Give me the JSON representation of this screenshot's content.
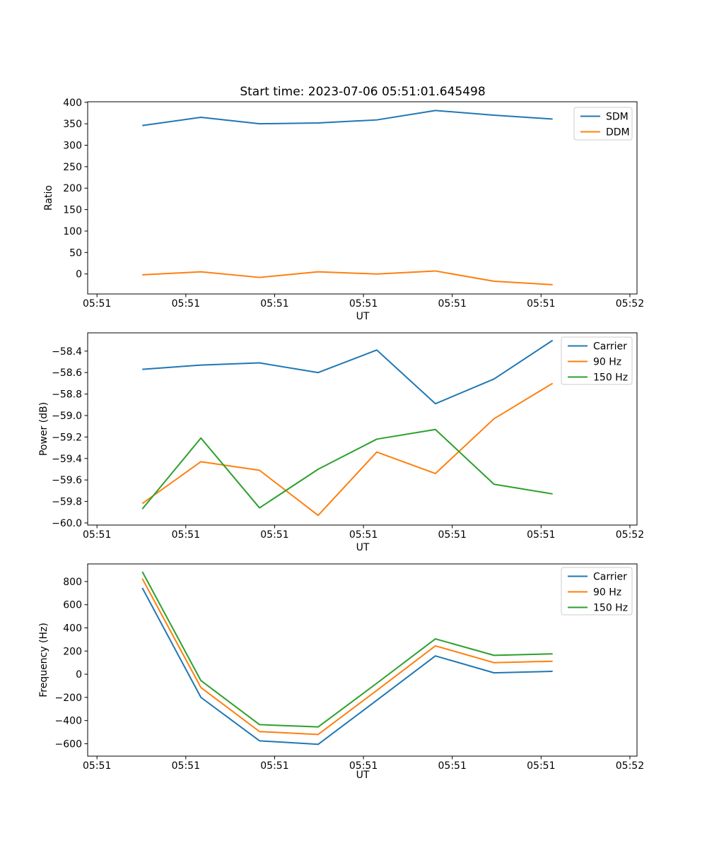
{
  "title": "Start time: 2023-07-06 05:51:01.645498",
  "x_axis": {
    "label": "UT",
    "tick_seconds": [
      0,
      10,
      20,
      30,
      40,
      50,
      60
    ],
    "tick_labels": [
      "05:51",
      "05:51",
      "05:51",
      "05:51",
      "05:51",
      "05:51",
      "05:52"
    ],
    "xlim_seconds": [
      -1.05,
      60.8
    ]
  },
  "x_seconds": [
    5.1,
    11.7,
    18.3,
    24.9,
    31.5,
    38.1,
    44.7,
    51.3
  ],
  "colors": {
    "blue": "#1f77b4",
    "orange": "#ff7f0e",
    "green": "#2ca02c",
    "axis": "#000000",
    "legend_border": "#cccccc",
    "legend_fill": "#ffffff"
  },
  "chart_data": [
    {
      "type": "line",
      "ylabel": "Ratio",
      "ylim": [
        -46.6,
        401.3
      ],
      "ytick_values": [
        0,
        50,
        100,
        150,
        200,
        250,
        300,
        350,
        400
      ],
      "ytick_labels": [
        "0",
        "50",
        "100",
        "150",
        "200",
        "250",
        "300",
        "350",
        "400"
      ],
      "legend_position": "upper right",
      "grid": false,
      "series": [
        {
          "name": "SDM",
          "color": "#1f77b4",
          "values": [
            346,
            365,
            350,
            352,
            359,
            381,
            370,
            361
          ]
        },
        {
          "name": "DDM",
          "color": "#ff7f0e",
          "values": [
            -2,
            5,
            -8,
            5,
            0,
            7,
            -17,
            -25
          ]
        }
      ]
    },
    {
      "type": "line",
      "ylabel": "Power (dB)",
      "ylim": [
        -60.02,
        -58.23
      ],
      "ytick_values": [
        -60.0,
        -59.8,
        -59.6,
        -59.4,
        -59.2,
        -59.0,
        -58.8,
        -58.6,
        -58.4
      ],
      "ytick_labels": [
        "−60.0",
        "−59.8",
        "−59.6",
        "−59.4",
        "−59.2",
        "−59.0",
        "−58.8",
        "−58.6",
        "−58.4"
      ],
      "legend_position": "upper right",
      "grid": false,
      "series": [
        {
          "name": "Carrier",
          "color": "#1f77b4",
          "values": [
            -58.57,
            -58.53,
            -58.51,
            -58.6,
            -58.39,
            -58.89,
            -58.66,
            -58.3
          ]
        },
        {
          "name": "90 Hz",
          "color": "#ff7f0e",
          "values": [
            -59.82,
            -59.43,
            -59.51,
            -59.93,
            -59.34,
            -59.54,
            -59.03,
            -58.7
          ]
        },
        {
          "name": "150 Hz",
          "color": "#2ca02c",
          "values": [
            -59.87,
            -59.21,
            -59.86,
            -59.5,
            -59.22,
            -59.13,
            -59.64,
            -59.73
          ]
        }
      ]
    },
    {
      "type": "line",
      "ylabel": "Frequency (Hz)",
      "ylim": [
        -707,
        952
      ],
      "ytick_values": [
        -600,
        -400,
        -200,
        0,
        200,
        400,
        600,
        800
      ],
      "ytick_labels": [
        "−600",
        "−400",
        "−200",
        "0",
        "200",
        "400",
        "600",
        "800"
      ],
      "legend_position": "upper right",
      "grid": false,
      "series": [
        {
          "name": "Carrier",
          "color": "#1f77b4",
          "values": [
            745,
            -200,
            -575,
            -605,
            -225,
            158,
            12,
            25
          ]
        },
        {
          "name": "90 Hz",
          "color": "#ff7f0e",
          "values": [
            825,
            -115,
            -495,
            -520,
            -140,
            245,
            100,
            112
          ]
        },
        {
          "name": "150 Hz",
          "color": "#2ca02c",
          "values": [
            885,
            -55,
            -435,
            -455,
            -78,
            305,
            163,
            176
          ]
        }
      ]
    }
  ]
}
